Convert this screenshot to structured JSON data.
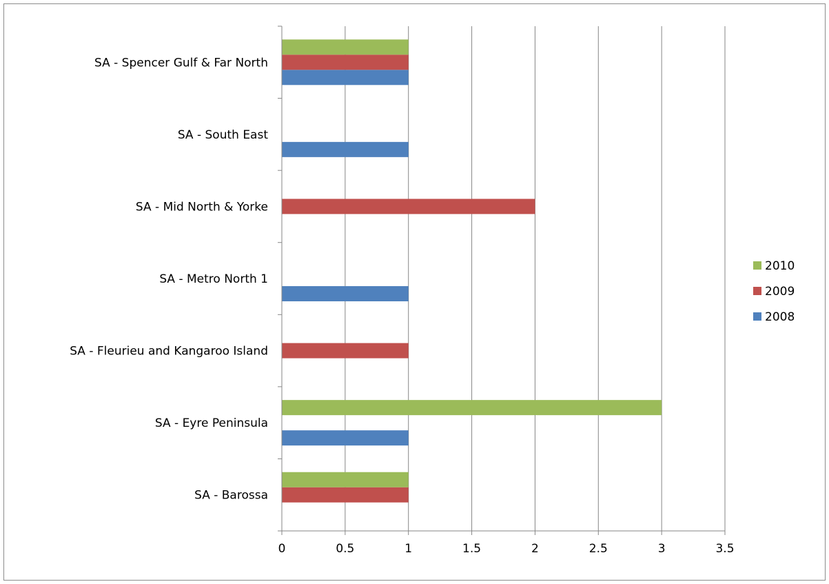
{
  "chart_data": {
    "type": "bar",
    "orientation": "horizontal",
    "title": "",
    "xlabel": "",
    "ylabel": "",
    "categories": [
      "SA - Barossa",
      "SA - Eyre Peninsula",
      "SA - Fleurieu and Kangaroo Island",
      "SA - Metro North 1",
      "SA - Mid North & Yorke",
      "SA - South East",
      "SA - Spencer Gulf & Far North"
    ],
    "series": [
      {
        "name": "2008",
        "color": "#4f81bd",
        "values": [
          null,
          1,
          null,
          1,
          null,
          1,
          1
        ]
      },
      {
        "name": "2009",
        "color": "#c0504d",
        "values": [
          1,
          null,
          1,
          null,
          2,
          null,
          1
        ]
      },
      {
        "name": "2010",
        "color": "#9bbb59",
        "values": [
          1,
          3,
          null,
          null,
          null,
          null,
          1
        ]
      }
    ],
    "xlim": [
      0,
      3.5
    ],
    "xticks": [
      "0",
      "0.5",
      "1",
      "1.5",
      "2",
      "2.5",
      "3",
      "3.5"
    ],
    "grid": "vertical major gridlines",
    "legend": {
      "position": "right",
      "order": [
        "2010",
        "2009",
        "2008"
      ]
    }
  }
}
